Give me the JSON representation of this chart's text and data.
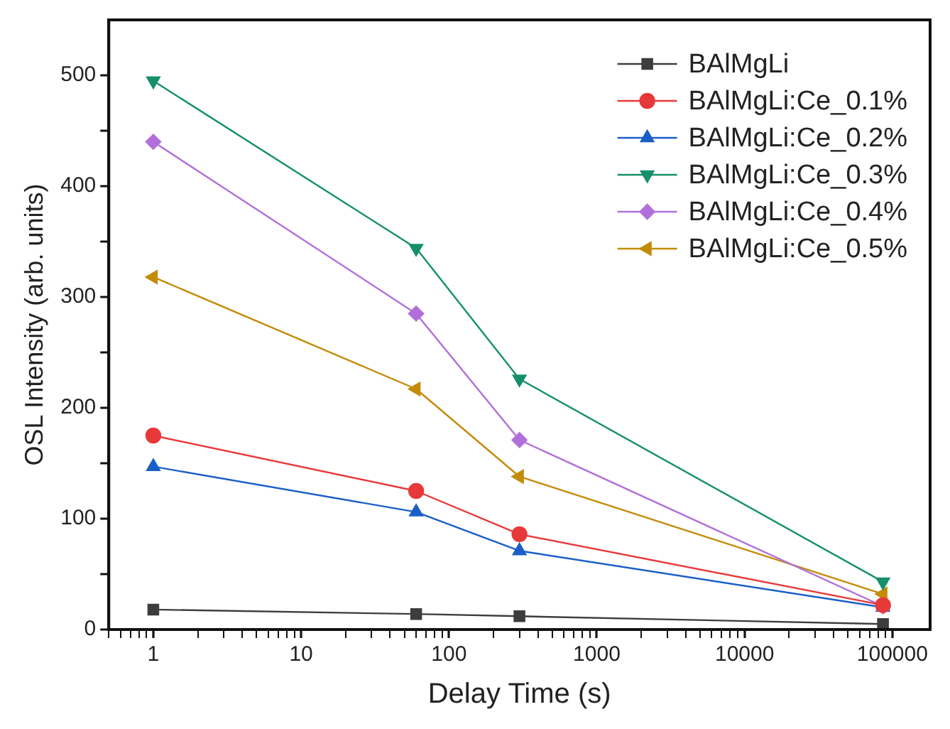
{
  "chart_data": {
    "type": "line",
    "xlabel": "Delay Time (s)",
    "ylabel": "OSL Intensity (arb. units)",
    "log": "x",
    "x": [
      1,
      60,
      300,
      86400
    ],
    "xlim": [
      0.5,
      180000
    ],
    "xticks": [
      {
        "value": 0.5,
        "label": null
      },
      {
        "value": 0.6,
        "label": null
      },
      {
        "value": 0.7,
        "label": null
      },
      {
        "value": 0.8,
        "label": null
      },
      {
        "value": 0.9,
        "label": null
      },
      1,
      {
        "value": 2,
        "label": null
      },
      {
        "value": 3,
        "label": null
      },
      {
        "value": 4,
        "label": null
      },
      {
        "value": 5,
        "label": null
      },
      {
        "value": 6,
        "label": null
      },
      {
        "value": 7,
        "label": null
      },
      {
        "value": 8,
        "label": null
      },
      {
        "value": 9,
        "label": null
      },
      10,
      {
        "value": 20,
        "label": null
      },
      {
        "value": 30,
        "label": null
      },
      {
        "value": 40,
        "label": null
      },
      {
        "value": 50,
        "label": null
      },
      {
        "value": 60,
        "label": null
      },
      {
        "value": 70,
        "label": null
      },
      {
        "value": 80,
        "label": null
      },
      {
        "value": 90,
        "label": null
      },
      100,
      {
        "value": 200,
        "label": null
      },
      {
        "value": 300,
        "label": null
      },
      {
        "value": 400,
        "label": null
      },
      {
        "value": 500,
        "label": null
      },
      {
        "value": 600,
        "label": null
      },
      {
        "value": 700,
        "label": null
      },
      {
        "value": 800,
        "label": null
      },
      {
        "value": 900,
        "label": null
      },
      1000,
      {
        "value": 2000,
        "label": null
      },
      {
        "value": 3000,
        "label": null
      },
      {
        "value": 4000,
        "label": null
      },
      {
        "value": 5000,
        "label": null
      },
      {
        "value": 6000,
        "label": null
      },
      {
        "value": 7000,
        "label": null
      },
      {
        "value": 8000,
        "label": null
      },
      {
        "value": 9000,
        "label": null
      },
      10000,
      {
        "value": 20000,
        "label": null
      },
      {
        "value": 30000,
        "label": null
      },
      {
        "value": 40000,
        "label": null
      },
      {
        "value": 50000,
        "label": null
      },
      {
        "value": 60000,
        "label": null
      },
      {
        "value": 70000,
        "label": null
      },
      {
        "value": 80000,
        "label": null
      },
      {
        "value": 90000,
        "label": null
      },
      100000
    ],
    "ylim": [
      0,
      550
    ],
    "yticks": [
      0,
      {
        "value": 50,
        "label": null
      },
      100,
      {
        "value": 150,
        "label": null
      },
      200,
      {
        "value": 250,
        "label": null
      },
      300,
      {
        "value": 350,
        "label": null
      },
      400,
      {
        "value": 450,
        "label": null
      },
      500
    ],
    "grid": false,
    "legend": "top right",
    "line_style": "solid",
    "series": [
      {
        "name": "BAlMgLi",
        "color": "#3d3d3d",
        "marker": "square",
        "values": [
          18,
          14,
          12,
          5
        ]
      },
      {
        "name": "BAlMgLi:Ce_0.1%",
        "color": "#e8393a",
        "marker": "circle",
        "values": [
          175,
          125,
          86,
          22
        ]
      },
      {
        "name": "BAlMgLi:Ce_0.2%",
        "color": "#1a5fc8",
        "marker": "triangle",
        "values": [
          147,
          106,
          71,
          20
        ]
      },
      {
        "name": "BAlMgLi:Ce_0.3%",
        "color": "#15906a",
        "marker": "triangle-down",
        "values": [
          495,
          344,
          226,
          43
        ]
      },
      {
        "name": "BAlMgLi:Ce_0.4%",
        "color": "#b26fdb",
        "marker": "diamond",
        "values": [
          440,
          285,
          171,
          21
        ]
      },
      {
        "name": "BAlMgLi:Ce_0.5%",
        "color": "#c38c08",
        "marker": "triangle-left",
        "values": [
          318,
          217,
          138,
          32
        ]
      }
    ]
  }
}
